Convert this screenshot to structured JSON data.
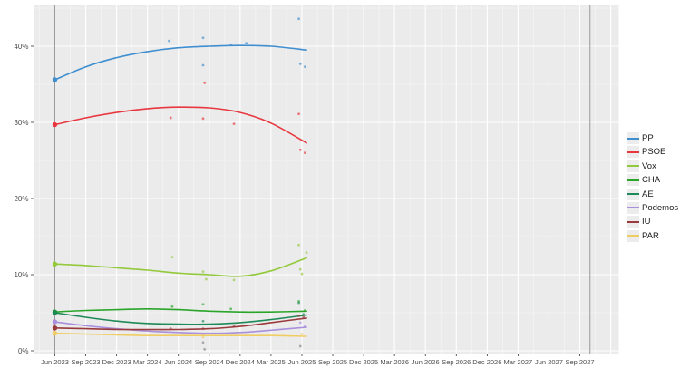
{
  "colors": {
    "page_bg": "#ffffff",
    "panel_bg": "#ebebeb",
    "grid_major": "#ffffff",
    "grid_minor": "#f5f5f5",
    "vline": "#999999",
    "axis_text": "#4d4d4d",
    "tick_mark": "#333333",
    "legend_key_bg": "#ececec",
    "legend_text": "#1a1a1a"
  },
  "chart_data": {
    "type": "scatter+smoothed-line",
    "title": "",
    "xlabel": "",
    "ylabel": "",
    "grid": "on",
    "legend_position": "right",
    "x_axis": {
      "unit": "quarter-from-Jun-2023",
      "labels": [
        "Jun 2023",
        "Sep 2023",
        "Dec 2023",
        "Mar 2024",
        "Jun 2024",
        "Sep 2024",
        "Dec 2024",
        "Mar 2025",
        "Jun 2025",
        "Sep 2025",
        "Dec 2025",
        "Mar 2026",
        "Jun 2026",
        "Sep 2026",
        "Dec 2026",
        "Mar 2027",
        "Jun 2027",
        "Sep 2027"
      ],
      "range_quarters": [
        -0.7,
        18.25
      ],
      "vlines_quarters": [
        0,
        17.33
      ]
    },
    "y_axis": {
      "labels": [
        "0%",
        "10%",
        "20%",
        "30%",
        "40%"
      ],
      "values": [
        0,
        10,
        20,
        30,
        40
      ],
      "minor_values": [
        5,
        15,
        25,
        35,
        45
      ],
      "range": [
        -0.4,
        45.8
      ]
    },
    "series": [
      {
        "name": "PP",
        "color": "#3e8ed0",
        "election_result_pct": 35.6,
        "trend": [
          [
            0,
            35.6
          ],
          [
            1,
            37.3
          ],
          [
            2,
            38.5
          ],
          [
            3,
            39.3
          ],
          [
            4,
            39.8
          ],
          [
            5,
            40.0
          ],
          [
            6,
            40.1
          ],
          [
            7,
            40.0
          ],
          [
            8.15,
            39.5
          ]
        ],
        "polls": [
          [
            3.7,
            40.7
          ],
          [
            4.8,
            41.1
          ],
          [
            4.8,
            37.5
          ],
          [
            5.7,
            40.2
          ],
          [
            6.2,
            40.4
          ],
          [
            7.9,
            43.6
          ],
          [
            7.95,
            37.7
          ],
          [
            8.1,
            37.3
          ]
        ]
      },
      {
        "name": "PSOE",
        "color": "#e8373f",
        "election_result_pct": 29.7,
        "trend": [
          [
            0,
            29.7
          ],
          [
            1,
            30.6
          ],
          [
            2,
            31.3
          ],
          [
            3,
            31.8
          ],
          [
            4,
            32.0
          ],
          [
            5,
            31.9
          ],
          [
            6,
            31.3
          ],
          [
            7,
            29.9
          ],
          [
            8.15,
            27.3
          ]
        ],
        "polls": [
          [
            3.75,
            30.6
          ],
          [
            4.8,
            30.5
          ],
          [
            4.85,
            35.2
          ],
          [
            5.8,
            29.8
          ],
          [
            7.9,
            31.1
          ],
          [
            7.95,
            26.4
          ],
          [
            8.1,
            26.0
          ]
        ]
      },
      {
        "name": "Vox",
        "color": "#93c93c",
        "election_result_pct": 11.4,
        "trend": [
          [
            0,
            11.4
          ],
          [
            1,
            11.2
          ],
          [
            2,
            10.9
          ],
          [
            3,
            10.6
          ],
          [
            4,
            10.2
          ],
          [
            5,
            10.0
          ],
          [
            6,
            9.8
          ],
          [
            7,
            10.5
          ],
          [
            8.15,
            12.2
          ]
        ],
        "polls": [
          [
            3.8,
            12.3
          ],
          [
            4.8,
            10.4
          ],
          [
            4.9,
            9.4
          ],
          [
            5.8,
            9.3
          ],
          [
            7.9,
            13.9
          ],
          [
            7.95,
            10.7
          ],
          [
            8.0,
            10.1
          ],
          [
            8.15,
            12.9
          ]
        ]
      },
      {
        "name": "CHA",
        "color": "#2aa52a",
        "election_result_pct": 5.1,
        "trend": [
          [
            0,
            5.1
          ],
          [
            1,
            5.3
          ],
          [
            2,
            5.4
          ],
          [
            3,
            5.5
          ],
          [
            4,
            5.4
          ],
          [
            5,
            5.2
          ],
          [
            6,
            5.1
          ],
          [
            7,
            5.1
          ],
          [
            8.15,
            5.2
          ]
        ],
        "polls": [
          [
            3.8,
            5.8
          ],
          [
            4.8,
            6.1
          ],
          [
            5.7,
            5.5
          ],
          [
            7.9,
            6.5
          ],
          [
            8.1,
            5.3
          ]
        ]
      },
      {
        "name": "AE",
        "color": "#1d8a57",
        "election_result_pct": 5.0,
        "trend": [
          [
            0,
            5.0
          ],
          [
            1,
            4.4
          ],
          [
            2,
            3.9
          ],
          [
            3,
            3.6
          ],
          [
            4,
            3.5
          ],
          [
            5,
            3.5
          ],
          [
            6,
            3.7
          ],
          [
            7,
            4.1
          ],
          [
            8.15,
            4.7
          ]
        ],
        "polls": [
          [
            4.8,
            3.9
          ],
          [
            7.9,
            6.3
          ],
          [
            8.05,
            4.8
          ]
        ]
      },
      {
        "name": "Podemos",
        "color": "#a98fdc",
        "election_result_pct": 3.8,
        "trend": [
          [
            0,
            3.8
          ],
          [
            1,
            3.3
          ],
          [
            2,
            2.9
          ],
          [
            3,
            2.6
          ],
          [
            4,
            2.4
          ],
          [
            5,
            2.3
          ],
          [
            6,
            2.4
          ],
          [
            7,
            2.7
          ],
          [
            8.15,
            3.1
          ]
        ],
        "polls": [
          [
            4.8,
            2.2
          ],
          [
            7.95,
            3.7
          ],
          [
            8.1,
            3.2
          ]
        ]
      },
      {
        "name": "IU",
        "color": "#9a3a3c",
        "election_result_pct": 3.0,
        "trend": [
          [
            0,
            3.0
          ],
          [
            1,
            2.9
          ],
          [
            2,
            2.8
          ],
          [
            3,
            2.8
          ],
          [
            4,
            2.8
          ],
          [
            5,
            2.9
          ],
          [
            6,
            3.2
          ],
          [
            7,
            3.7
          ],
          [
            8.15,
            4.3
          ]
        ],
        "polls": [
          [
            3.75,
            2.9
          ],
          [
            4.8,
            2.9
          ],
          [
            5.8,
            3.2
          ],
          [
            7.9,
            4.6
          ],
          [
            8.05,
            4.4
          ]
        ]
      },
      {
        "name": "PAR",
        "color": "#f0cd63",
        "election_result_pct": 2.3,
        "trend": [
          [
            0,
            2.3
          ],
          [
            1,
            2.2
          ],
          [
            2,
            2.1
          ],
          [
            3,
            2.0
          ],
          [
            4,
            2.0
          ],
          [
            5,
            2.0
          ],
          [
            6,
            2.0
          ],
          [
            7,
            2.0
          ],
          [
            8.15,
            1.9
          ]
        ],
        "polls": [
          [
            4.8,
            1.8
          ],
          [
            8.0,
            2.2
          ]
        ]
      }
    ],
    "unassigned_polls": {
      "color": "#9a9a9a",
      "points": [
        [
          4.8,
          1.1
        ],
        [
          4.85,
          0.2
        ],
        [
          7.95,
          0.6
        ]
      ]
    }
  }
}
